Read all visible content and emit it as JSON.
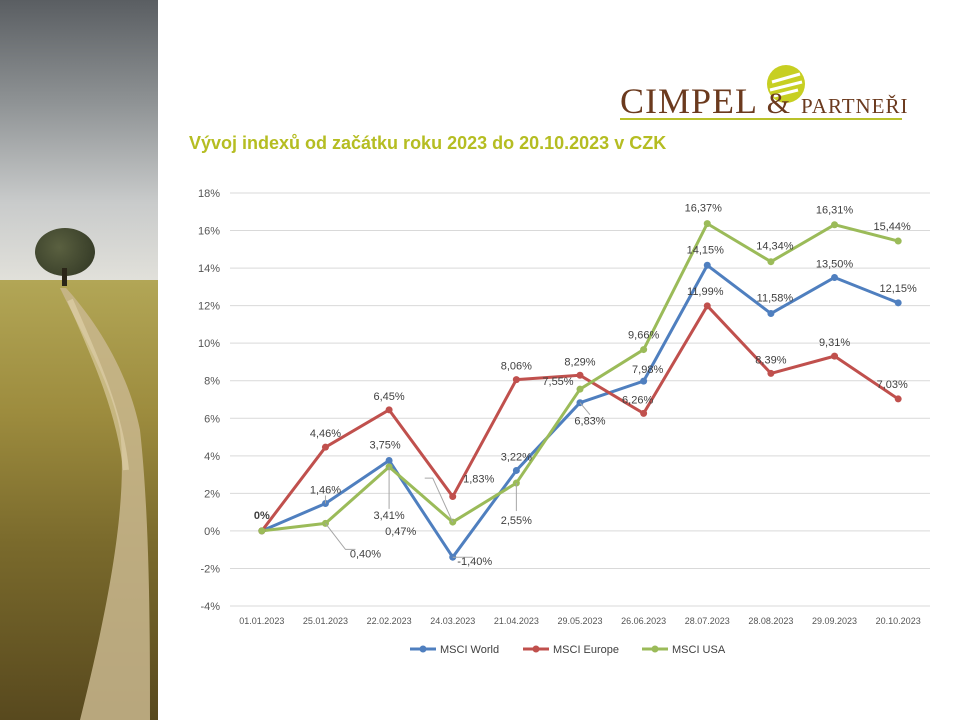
{
  "logo": {
    "main": "CIMPEL",
    "amp": "&",
    "partner": "PARTNEŘI"
  },
  "colors": {
    "world": "#4f7fbf",
    "europe": "#c0504d",
    "usa": "#9bbb59",
    "title": "#b5bd22",
    "brand": "#6b3a1e"
  },
  "chart_data": {
    "type": "line",
    "title": "Vývoj indexů od začátku roku 2023 do 20.10.2023 v CZK",
    "categories": [
      "01.01.2023",
      "25.01.2023",
      "22.02.2023",
      "24.03.2023",
      "21.04.2023",
      "29.05.2023",
      "26.06.2023",
      "28.07.2023",
      "28.08.2023",
      "29.09.2023",
      "20.10.2023"
    ],
    "ylim": [
      -4,
      18
    ],
    "yticks": [
      "-4%",
      "-2%",
      "0%",
      "2%",
      "4%",
      "6%",
      "8%",
      "10%",
      "12%",
      "14%",
      "16%",
      "18%"
    ],
    "grid": true,
    "legend": "bottom",
    "series": [
      {
        "name": "MSCI World",
        "values": [
          0,
          1.46,
          3.75,
          -1.4,
          3.22,
          6.83,
          7.98,
          14.15,
          11.58,
          13.5,
          12.15
        ],
        "labels": [
          "0%",
          "1,46%",
          "3,75%",
          "-1,40%",
          "3,22%",
          "6,83%",
          "7,98%",
          "14,15%",
          "11,58%",
          "13,50%",
          "12,15%"
        ]
      },
      {
        "name": "MSCI Europe",
        "values": [
          0,
          4.46,
          6.45,
          1.83,
          8.06,
          8.29,
          6.26,
          11.99,
          8.39,
          9.31,
          7.03
        ],
        "labels": [
          "0%",
          "4,46%",
          "6,45%",
          "1,83%",
          "8,06%",
          "8,29%",
          "6,26%",
          "11,99%",
          "8,39%",
          "9,31%",
          "7,03%"
        ]
      },
      {
        "name": "MSCI USA",
        "values": [
          0,
          0.4,
          3.41,
          0.47,
          2.55,
          7.55,
          9.66,
          16.37,
          14.34,
          16.31,
          15.44
        ],
        "labels": [
          "0%",
          "0,40%",
          "3,41%",
          "0,47%",
          "2,55%",
          "7,55%",
          "9,66%",
          "16,37%",
          "14,34%",
          "16,31%",
          "15,44%"
        ]
      }
    ]
  }
}
